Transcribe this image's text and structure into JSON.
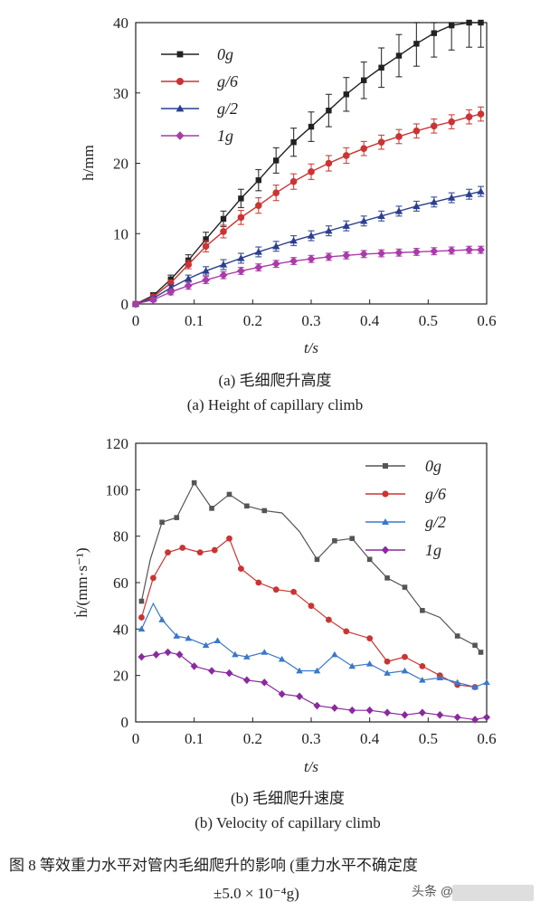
{
  "chart_data": [
    {
      "type": "line",
      "panel": "a",
      "xlabel": "t/s",
      "ylabel": "h/mm",
      "xlim": [
        0,
        0.6
      ],
      "ylim": [
        0,
        40
      ],
      "xticks": [
        "0",
        "0.1",
        "0.2",
        "0.3",
        "0.4",
        "0.5",
        "0.6"
      ],
      "yticks": [
        "0",
        "10",
        "20",
        "30",
        "40"
      ],
      "grid": false,
      "legend": "top-left",
      "error_bars": true,
      "x": [
        0,
        0.03,
        0.06,
        0.09,
        0.12,
        0.15,
        0.18,
        0.21,
        0.24,
        0.27,
        0.3,
        0.33,
        0.36,
        0.39,
        0.42,
        0.45,
        0.48,
        0.51,
        0.54,
        0.57,
        0.59
      ],
      "series": [
        {
          "name": "0g",
          "color": "#222222",
          "marker": "square",
          "values": [
            0,
            1.2,
            3.5,
            6.2,
            9.2,
            12.1,
            15.0,
            17.6,
            20.4,
            23.0,
            25.2,
            27.5,
            29.8,
            31.8,
            33.6,
            35.3,
            37.0,
            38.5,
            39.6,
            40.0,
            40.0
          ],
          "errors": [
            0.3,
            0.4,
            0.6,
            0.8,
            1.0,
            1.1,
            1.3,
            1.5,
            1.8,
            2.0,
            2.1,
            2.3,
            2.4,
            2.6,
            2.8,
            3.0,
            3.2,
            3.4,
            3.5,
            3.5,
            3.5
          ]
        },
        {
          "name": "g/6",
          "color": "#cc3333",
          "marker": "circle",
          "values": [
            0,
            1.0,
            3.0,
            5.6,
            8.2,
            10.3,
            12.3,
            14.0,
            15.8,
            17.4,
            18.8,
            20.0,
            21.1,
            22.1,
            23.0,
            23.8,
            24.6,
            25.3,
            25.9,
            26.6,
            27.0
          ],
          "errors": [
            0.2,
            0.3,
            0.4,
            0.6,
            0.8,
            0.9,
            1.0,
            1.1,
            1.1,
            1.1,
            1.1,
            1.1,
            1.1,
            1.0,
            1.0,
            1.0,
            1.0,
            1.0,
            1.0,
            1.0,
            1.0
          ]
        },
        {
          "name": "g/2",
          "color": "#2b3f8f",
          "marker": "triangle",
          "values": [
            0,
            0.8,
            2.3,
            3.6,
            4.7,
            5.6,
            6.5,
            7.4,
            8.2,
            9.0,
            9.7,
            10.4,
            11.1,
            11.8,
            12.5,
            13.2,
            13.9,
            14.5,
            15.1,
            15.6,
            16.0
          ],
          "errors": [
            0.2,
            0.3,
            0.4,
            0.5,
            0.6,
            0.7,
            0.7,
            0.7,
            0.7,
            0.7,
            0.7,
            0.7,
            0.7,
            0.7,
            0.7,
            0.7,
            0.7,
            0.7,
            0.7,
            0.7,
            0.7
          ]
        },
        {
          "name": "1g",
          "color": "#a93ca8",
          "marker": "diamond",
          "values": [
            0,
            0.6,
            1.7,
            2.6,
            3.4,
            4.1,
            4.7,
            5.2,
            5.7,
            6.1,
            6.4,
            6.7,
            6.9,
            7.1,
            7.2,
            7.3,
            7.4,
            7.5,
            7.6,
            7.7,
            7.7
          ],
          "errors": [
            0.2,
            0.3,
            0.4,
            0.5,
            0.5,
            0.5,
            0.5,
            0.5,
            0.5,
            0.5,
            0.5,
            0.5,
            0.5,
            0.5,
            0.5,
            0.5,
            0.5,
            0.5,
            0.5,
            0.5,
            0.5
          ]
        }
      ]
    },
    {
      "type": "line",
      "panel": "b",
      "xlabel": "t/s",
      "ylabel": "ḣ/(mm·s⁻¹)",
      "xlim": [
        0,
        0.6
      ],
      "ylim": [
        0,
        120
      ],
      "xticks": [
        "0",
        "0.1",
        "0.2",
        "0.3",
        "0.4",
        "0.5",
        "0.6"
      ],
      "yticks": [
        "0",
        "20",
        "40",
        "60",
        "80",
        "100",
        "120"
      ],
      "grid": false,
      "legend": "top-right",
      "error_bars": false,
      "series": [
        {
          "name": "0g",
          "color": "#555555",
          "marker": "square",
          "x": [
            0.01,
            0.025,
            0.045,
            0.07,
            0.1,
            0.13,
            0.16,
            0.19,
            0.22,
            0.25,
            0.28,
            0.31,
            0.34,
            0.37,
            0.4,
            0.43,
            0.46,
            0.49,
            0.52,
            0.55,
            0.58,
            0.59
          ],
          "values": [
            52,
            70,
            86,
            88,
            103,
            92,
            98,
            93,
            91,
            90,
            82,
            70,
            78,
            79,
            70,
            62,
            58,
            48,
            45,
            37,
            33,
            30
          ],
          "marker_indices": [
            0,
            2,
            3,
            4,
            5,
            6,
            7,
            8,
            11,
            12,
            13,
            14,
            15,
            16,
            17,
            19,
            20,
            21
          ]
        },
        {
          "name": "g/6",
          "color": "#cc3333",
          "marker": "circle",
          "x": [
            0.01,
            0.03,
            0.055,
            0.08,
            0.11,
            0.135,
            0.16,
            0.18,
            0.21,
            0.24,
            0.27,
            0.3,
            0.33,
            0.36,
            0.4,
            0.43,
            0.46,
            0.49,
            0.52,
            0.55,
            0.58
          ],
          "values": [
            45,
            62,
            73,
            75,
            73,
            74,
            79,
            66,
            60,
            57,
            56,
            50,
            44,
            39,
            36,
            26,
            28,
            24,
            20,
            16,
            15
          ],
          "marker_indices": [
            0,
            1,
            2,
            3,
            4,
            5,
            6,
            7,
            8,
            9,
            10,
            11,
            12,
            13,
            14,
            15,
            16,
            17,
            18,
            19,
            20
          ]
        },
        {
          "name": "g/2",
          "color": "#3a78c8",
          "marker": "triangle",
          "x": [
            0.01,
            0.03,
            0.045,
            0.07,
            0.09,
            0.12,
            0.14,
            0.17,
            0.19,
            0.22,
            0.25,
            0.28,
            0.31,
            0.34,
            0.37,
            0.4,
            0.43,
            0.46,
            0.49,
            0.52,
            0.55,
            0.58,
            0.6
          ],
          "values": [
            40,
            51,
            44,
            37,
            36,
            33,
            35,
            29,
            28,
            30,
            27,
            22,
            22,
            29,
            24,
            25,
            21,
            22,
            18,
            19,
            17,
            15,
            17
          ],
          "marker_indices": [
            0,
            2,
            3,
            4,
            5,
            6,
            7,
            8,
            9,
            10,
            11,
            12,
            13,
            14,
            15,
            16,
            17,
            18,
            19,
            20,
            21,
            22
          ]
        },
        {
          "name": "1g",
          "color": "#8a2aa0",
          "marker": "diamond",
          "x": [
            0.01,
            0.035,
            0.055,
            0.075,
            0.1,
            0.13,
            0.16,
            0.19,
            0.22,
            0.25,
            0.28,
            0.31,
            0.34,
            0.37,
            0.4,
            0.43,
            0.46,
            0.49,
            0.52,
            0.55,
            0.58,
            0.6
          ],
          "values": [
            28,
            29,
            30,
            29,
            24,
            22,
            21,
            18,
            17,
            12,
            11,
            7,
            6,
            5,
            5,
            4,
            3,
            4,
            3,
            2,
            1,
            2
          ],
          "marker_indices": [
            0,
            1,
            2,
            3,
            4,
            5,
            6,
            7,
            8,
            9,
            10,
            11,
            12,
            13,
            14,
            15,
            16,
            17,
            18,
            19,
            20,
            21
          ]
        }
      ]
    }
  ],
  "captions": {
    "a_cn": "(a) 毛细爬升高度",
    "a_en": "(a) Height of capillary climb",
    "b_cn": "(b) 毛细爬升速度",
    "b_en": "(b) Velocity of capillary climb"
  },
  "figure_caption": {
    "line1": "图 8   等效重力水平对管内毛细爬升的影响 (重力水平不确定度",
    "line2": "±5.0 × 10⁻⁴g)"
  },
  "watermark": "头条 @"
}
